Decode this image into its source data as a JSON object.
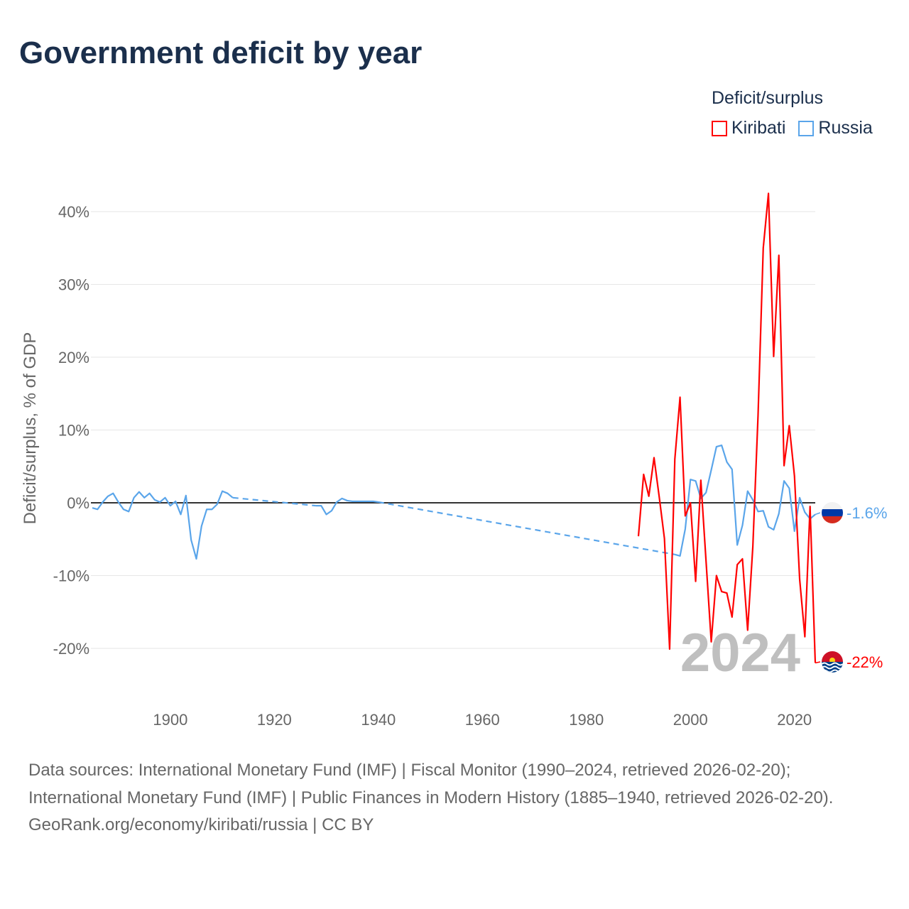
{
  "title": "Government deficit by year",
  "legend": {
    "title": "Deficit/surplus",
    "items": [
      {
        "label": "Kiribati",
        "color": "#ff0000"
      },
      {
        "label": "Russia",
        "color": "#5aa5ea"
      }
    ]
  },
  "footer": {
    "sources": "Data sources: International Monetary Fund (IMF) | Fiscal Monitor (1990–2024, retrieved 2026-02-20); International Monetary Fund (IMF) | Public Finances in Modern History (1885–1940, retrieved 2026-02-20).",
    "credit": "GeoRank.org/economy/kiribati/russia | CC BY"
  },
  "chart_data": {
    "type": "line",
    "title": "Government deficit by year",
    "ylabel": "Deficit/surplus, % of GDP",
    "xlabel": "",
    "xlim": [
      1885,
      2024
    ],
    "ylim": [
      -25,
      45
    ],
    "x_ticks": [
      1900,
      1920,
      1940,
      1960,
      1980,
      2000,
      2020
    ],
    "y_ticks": [
      -20,
      -10,
      0,
      10,
      20,
      30,
      40
    ],
    "y_tick_labels": [
      "-20%",
      "-10%",
      "0%",
      "10%",
      "20%",
      "30%",
      "40%"
    ],
    "grid": "horizontal",
    "legend_position": "top-right",
    "year_watermark": "2024",
    "series": [
      {
        "name": "Kiribati",
        "color": "#ff0000",
        "end_label": "-22%",
        "points": [
          [
            1990,
            -4.6
          ],
          [
            1991,
            3.9
          ],
          [
            1992,
            0.9
          ],
          [
            1993,
            6.2
          ],
          [
            1994,
            0.8
          ],
          [
            1995,
            -4.9
          ],
          [
            1996,
            -20.1
          ],
          [
            1997,
            6.0
          ],
          [
            1998,
            14.5
          ],
          [
            1999,
            -1.8
          ],
          [
            2000,
            0
          ],
          [
            2001,
            -10.8
          ],
          [
            2002,
            3.1
          ],
          [
            2003,
            -8
          ],
          [
            2004,
            -19.1
          ],
          [
            2005,
            -10
          ],
          [
            2006,
            -12.2
          ],
          [
            2007,
            -12.4
          ],
          [
            2008,
            -15.7
          ],
          [
            2009,
            -8.5
          ],
          [
            2010,
            -7.7
          ],
          [
            2011,
            -17.5
          ],
          [
            2012,
            -6
          ],
          [
            2013,
            12
          ],
          [
            2014,
            35.0
          ],
          [
            2015,
            42.5
          ],
          [
            2016,
            20.1
          ],
          [
            2017,
            34.0
          ],
          [
            2018,
            5.1
          ],
          [
            2019,
            10.6
          ],
          [
            2020,
            3.7
          ],
          [
            2021,
            -10.5
          ],
          [
            2022,
            -18.4
          ],
          [
            2023,
            -0.5
          ],
          [
            2024,
            -22
          ]
        ]
      },
      {
        "name": "Russia",
        "color": "#5aa5ea",
        "end_label": "-1.6%",
        "points": [
          [
            1885,
            -0.7
          ],
          [
            1886,
            -0.9
          ],
          [
            1887,
            0.1
          ],
          [
            1888,
            0.9
          ],
          [
            1889,
            1.3
          ],
          [
            1890,
            0.1
          ],
          [
            1891,
            -0.9
          ],
          [
            1892,
            -1.2
          ],
          [
            1893,
            0.7
          ],
          [
            1894,
            1.5
          ],
          [
            1895,
            0.7
          ],
          [
            1896,
            1.3
          ],
          [
            1897,
            0.4
          ],
          [
            1898,
            0.1
          ],
          [
            1899,
            0.7
          ],
          [
            1900,
            -0.4
          ],
          [
            1901,
            0.2
          ],
          [
            1902,
            -1.6
          ],
          [
            1903,
            1.0
          ],
          [
            1904,
            -5.1
          ],
          [
            1905,
            -7.7
          ],
          [
            1906,
            -3.2
          ],
          [
            1907,
            -0.9
          ],
          [
            1908,
            -0.9
          ],
          [
            1909,
            -0.2
          ],
          [
            1910,
            1.6
          ],
          [
            1911,
            1.3
          ],
          [
            1912,
            0.7
          ],
          [
            1928,
            -0.4
          ],
          [
            1929,
            -0.4
          ],
          [
            1930,
            -1.6
          ],
          [
            1931,
            -1.1
          ],
          [
            1932,
            0.1
          ],
          [
            1933,
            0.6
          ],
          [
            1934,
            0.3
          ],
          [
            1935,
            0.2
          ],
          [
            1936,
            0.2
          ],
          [
            1937,
            0.2
          ],
          [
            1938,
            0.2
          ],
          [
            1939,
            0.2
          ],
          [
            1940,
            0.1
          ],
          [
            1997,
            -7.1
          ],
          [
            1998,
            -7.3
          ],
          [
            1999,
            -3.6
          ],
          [
            2000,
            3.2
          ],
          [
            2001,
            3.0
          ],
          [
            2002,
            0.6
          ],
          [
            2003,
            1.4
          ],
          [
            2004,
            4.5
          ],
          [
            2005,
            7.7
          ],
          [
            2006,
            7.9
          ],
          [
            2007,
            5.6
          ],
          [
            2008,
            4.6
          ],
          [
            2009,
            -5.8
          ],
          [
            2010,
            -3.1
          ],
          [
            2011,
            1.6
          ],
          [
            2012,
            0.4
          ],
          [
            2013,
            -1.2
          ],
          [
            2014,
            -1.1
          ],
          [
            2015,
            -3.3
          ],
          [
            2016,
            -3.7
          ],
          [
            2017,
            -1.5
          ],
          [
            2018,
            3.0
          ],
          [
            2019,
            2.0
          ],
          [
            2020,
            -3.9
          ],
          [
            2021,
            0.7
          ],
          [
            2022,
            -1.3
          ],
          [
            2023,
            -2.2
          ],
          [
            2024,
            -1.6
          ]
        ]
      }
    ]
  }
}
